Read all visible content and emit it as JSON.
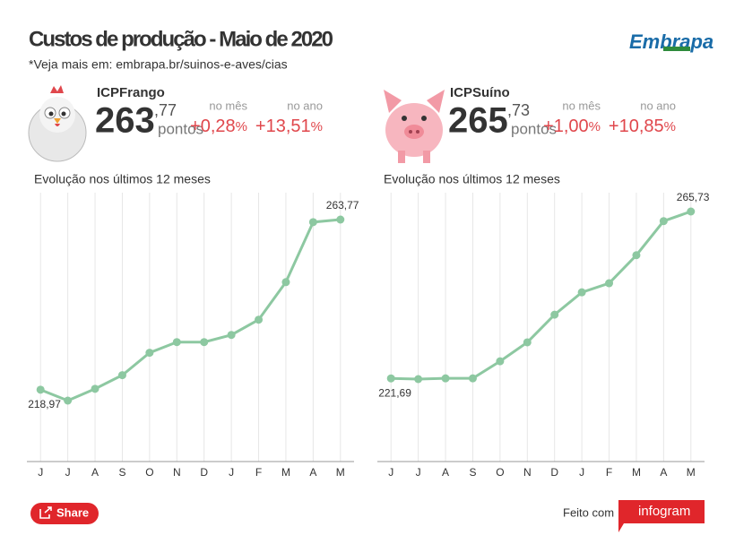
{
  "header": {
    "title": "Custos de produção - Maio de 2020",
    "subtitle": "*Veja mais em: embrapa.br/suinos-e-aves/cias",
    "logo": "Embrapa"
  },
  "indices": [
    {
      "name": "ICPFrango",
      "integer": "263",
      "decimal": ",77",
      "unit": "pontos",
      "month_label": "no mês",
      "month_value": "+0,28",
      "month_unit": "%",
      "year_label": "no ano",
      "year_value": "+13,51",
      "year_unit": "%"
    },
    {
      "name": "ICPSuíno",
      "integer": "265",
      "decimal": ",73",
      "unit": "pontos",
      "month_label": "no mês",
      "month_value": "+1,00",
      "month_unit": "%",
      "year_label": "no ano",
      "year_value": "+10,85",
      "year_unit": "%"
    }
  ],
  "chart_data": [
    {
      "type": "line",
      "title": "Evolução nos últimos 12 meses",
      "color": "#8dc8a1",
      "grid": true,
      "categories": [
        "J",
        "J",
        "A",
        "S",
        "O",
        "N",
        "D",
        "J",
        "F",
        "M",
        "A",
        "M"
      ],
      "values": [
        218.97,
        216.1,
        219.2,
        222.8,
        228.7,
        231.5,
        231.5,
        233.4,
        237.4,
        247.3,
        263.1,
        263.77
      ],
      "value_labels": [
        "218,97",
        null,
        null,
        null,
        null,
        null,
        null,
        null,
        null,
        null,
        null,
        "263,77"
      ]
    },
    {
      "type": "line",
      "title": "Evolução nos últimos 12 meses",
      "color": "#8dc8a1",
      "grid": true,
      "categories": [
        "J",
        "J",
        "A",
        "S",
        "O",
        "N",
        "D",
        "J",
        "F",
        "M",
        "A",
        "M"
      ],
      "values": [
        221.69,
        221.5,
        221.7,
        221.7,
        226.2,
        231.2,
        238.5,
        244.4,
        246.8,
        254.2,
        263.2,
        265.73
      ],
      "value_labels": [
        "221,69",
        null,
        null,
        null,
        null,
        null,
        null,
        null,
        null,
        null,
        null,
        "265,73"
      ]
    }
  ],
  "footer": {
    "share": "Share",
    "made_with": "Feito com",
    "brand": "infogram"
  }
}
